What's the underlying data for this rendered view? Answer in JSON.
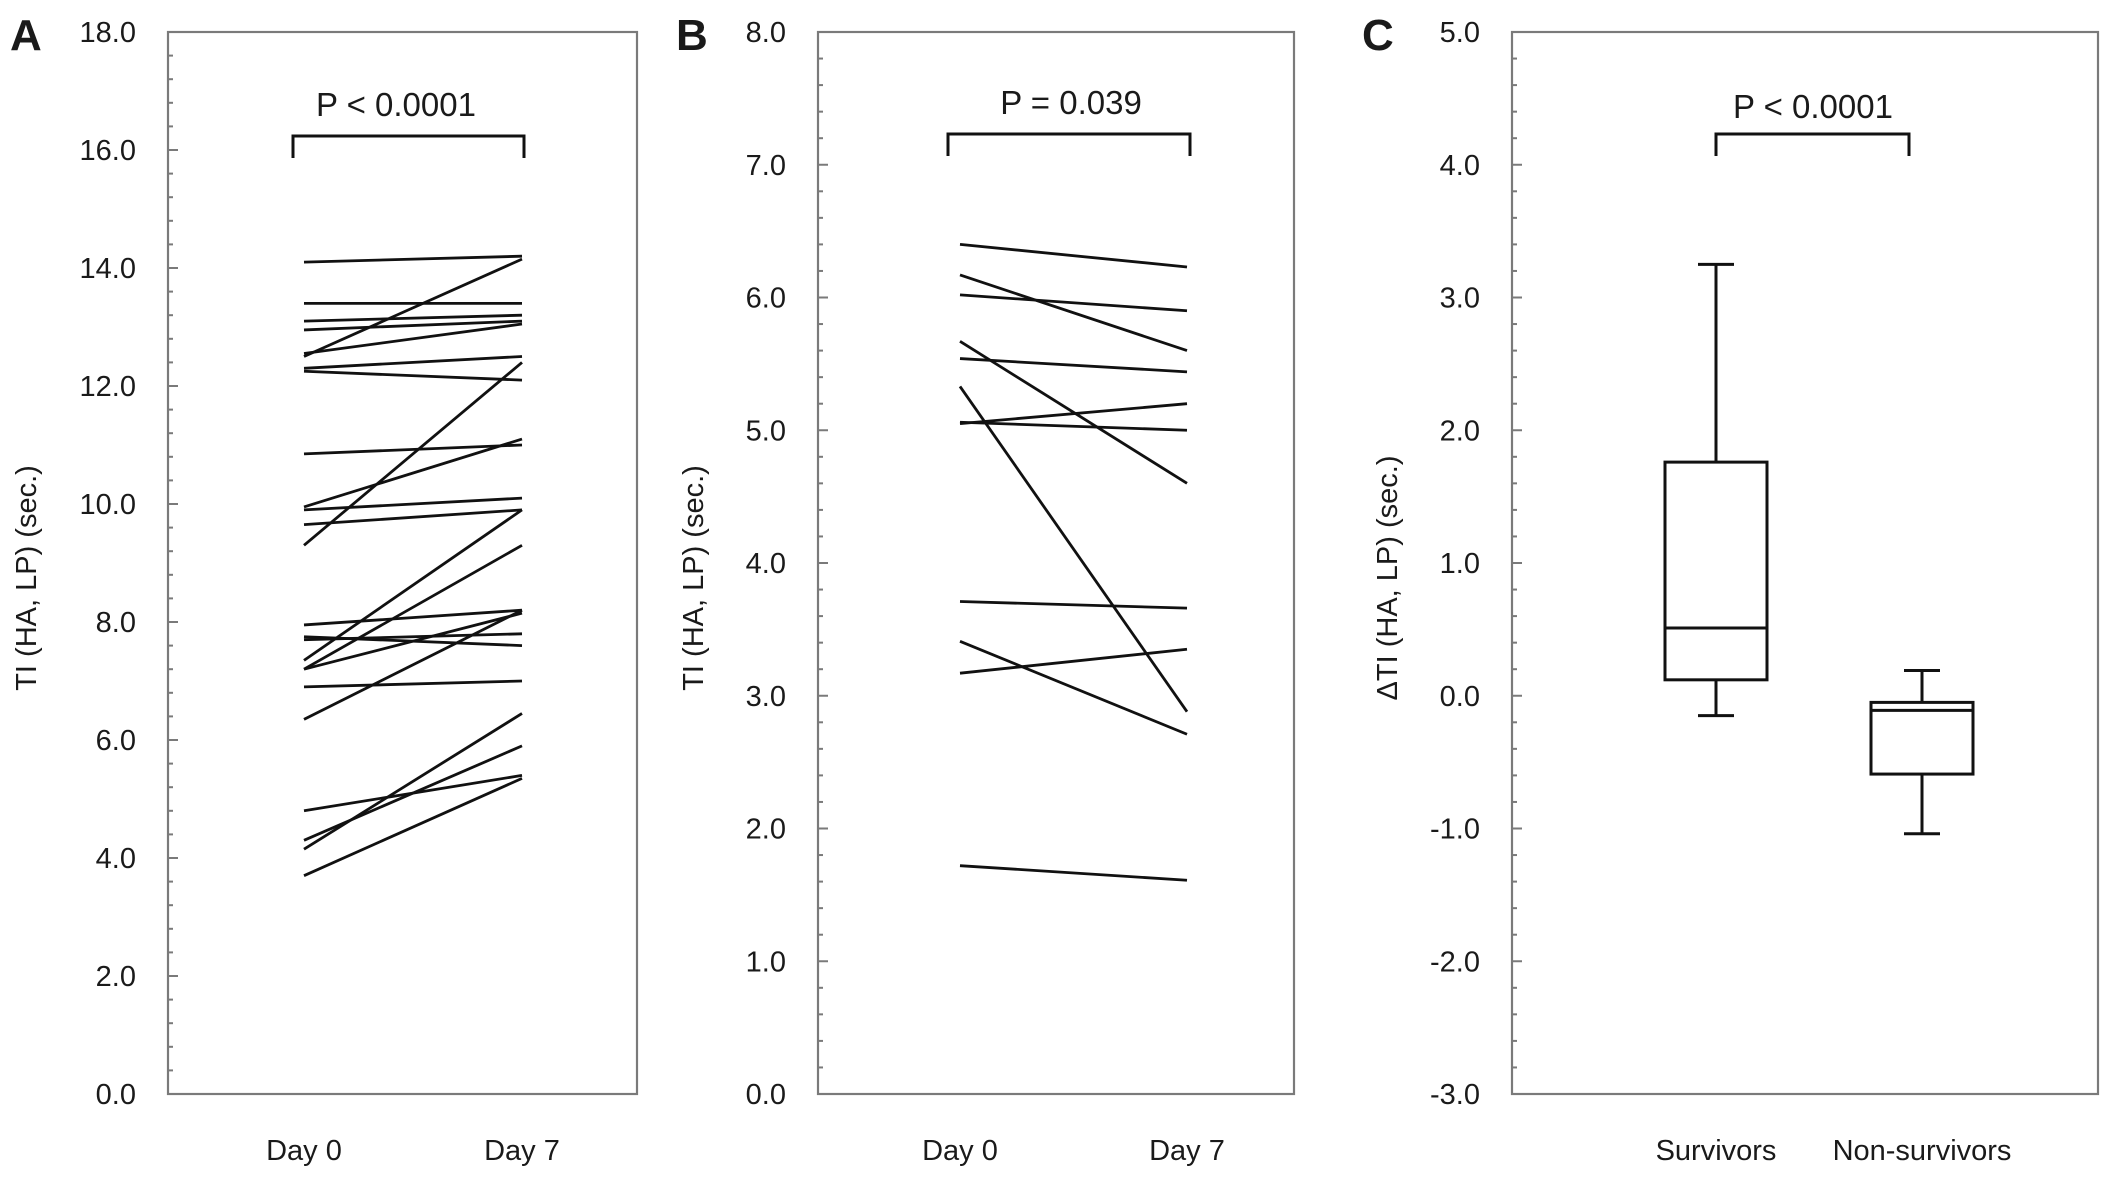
{
  "figure": {
    "panels": [
      "A",
      "B",
      "C"
    ]
  },
  "chart_data": [
    {
      "panel": "A",
      "type": "line",
      "title": "",
      "xlabel": "",
      "ylabel": "TI (HA, LP) (sec.)",
      "categories": [
        "Day 0",
        "Day 7"
      ],
      "ylim": [
        0.0,
        18.0
      ],
      "yticks": [
        "0.0",
        "2.0",
        "4.0",
        "6.0",
        "8.0",
        "10.0",
        "12.0",
        "14.0",
        "16.0",
        "18.0"
      ],
      "grid": false,
      "annotation": "P < 0.0001",
      "series": [
        {
          "values": [
            14.1,
            14.2
          ]
        },
        {
          "values": [
            13.4,
            13.4
          ]
        },
        {
          "values": [
            13.1,
            13.2
          ]
        },
        {
          "values": [
            12.95,
            13.1
          ]
        },
        {
          "values": [
            12.55,
            13.05
          ]
        },
        {
          "values": [
            12.5,
            14.15
          ]
        },
        {
          "values": [
            12.3,
            12.5
          ]
        },
        {
          "values": [
            12.25,
            12.1
          ]
        },
        {
          "values": [
            10.85,
            11.0
          ]
        },
        {
          "values": [
            9.95,
            11.1
          ]
        },
        {
          "values": [
            9.9,
            10.1
          ]
        },
        {
          "values": [
            9.65,
            9.9
          ]
        },
        {
          "values": [
            9.3,
            12.4
          ]
        },
        {
          "values": [
            7.95,
            8.2
          ]
        },
        {
          "values": [
            7.75,
            7.6
          ]
        },
        {
          "values": [
            7.7,
            7.8
          ]
        },
        {
          "values": [
            7.35,
            9.9
          ]
        },
        {
          "values": [
            7.2,
            9.3
          ]
        },
        {
          "values": [
            7.2,
            8.15
          ]
        },
        {
          "values": [
            6.9,
            7.0
          ]
        },
        {
          "values": [
            6.35,
            8.2
          ]
        },
        {
          "values": [
            4.8,
            5.4
          ]
        },
        {
          "values": [
            4.3,
            5.9
          ]
        },
        {
          "values": [
            4.15,
            6.45
          ]
        },
        {
          "values": [
            3.7,
            5.35
          ]
        }
      ]
    },
    {
      "panel": "B",
      "type": "line",
      "title": "",
      "xlabel": "",
      "ylabel": "TI (HA, LP) (sec.)",
      "categories": [
        "Day 0",
        "Day 7"
      ],
      "ylim": [
        0.0,
        8.0
      ],
      "yticks": [
        "0.0",
        "1.0",
        "2.0",
        "3.0",
        "4.0",
        "5.0",
        "6.0",
        "7.0",
        "8.0"
      ],
      "grid": false,
      "annotation": "P = 0.039",
      "series": [
        {
          "values": [
            6.4,
            6.23
          ]
        },
        {
          "values": [
            6.17,
            5.6
          ]
        },
        {
          "values": [
            6.02,
            5.9
          ]
        },
        {
          "values": [
            5.67,
            4.6
          ]
        },
        {
          "values": [
            5.54,
            5.44
          ]
        },
        {
          "values": [
            5.33,
            2.88
          ]
        },
        {
          "values": [
            5.06,
            5.0
          ]
        },
        {
          "values": [
            5.05,
            5.2
          ]
        },
        {
          "values": [
            3.71,
            3.66
          ]
        },
        {
          "values": [
            3.41,
            2.71
          ]
        },
        {
          "values": [
            3.17,
            3.35
          ]
        },
        {
          "values": [
            1.72,
            1.61
          ]
        }
      ]
    },
    {
      "panel": "C",
      "type": "box",
      "title": "",
      "xlabel": "",
      "ylabel": "ΔTI (HA, LP) (sec.)",
      "categories": [
        "Survivors",
        "Non-survivors"
      ],
      "ylim": [
        -3.0,
        5.0
      ],
      "yticks": [
        "-3.0",
        "-2.0",
        "-1.0",
        "0.0",
        "1.0",
        "2.0",
        "3.0",
        "4.0",
        "5.0"
      ],
      "grid": false,
      "annotation": "P < 0.0001",
      "boxes": [
        {
          "category": "Survivors",
          "min": -0.15,
          "q1": 0.12,
          "median": 0.51,
          "q3": 1.76,
          "max": 3.25
        },
        {
          "category": "Non-survivors",
          "min": -1.04,
          "q1": -0.59,
          "median": -0.11,
          "q3": -0.05,
          "max": 0.19
        }
      ]
    }
  ]
}
